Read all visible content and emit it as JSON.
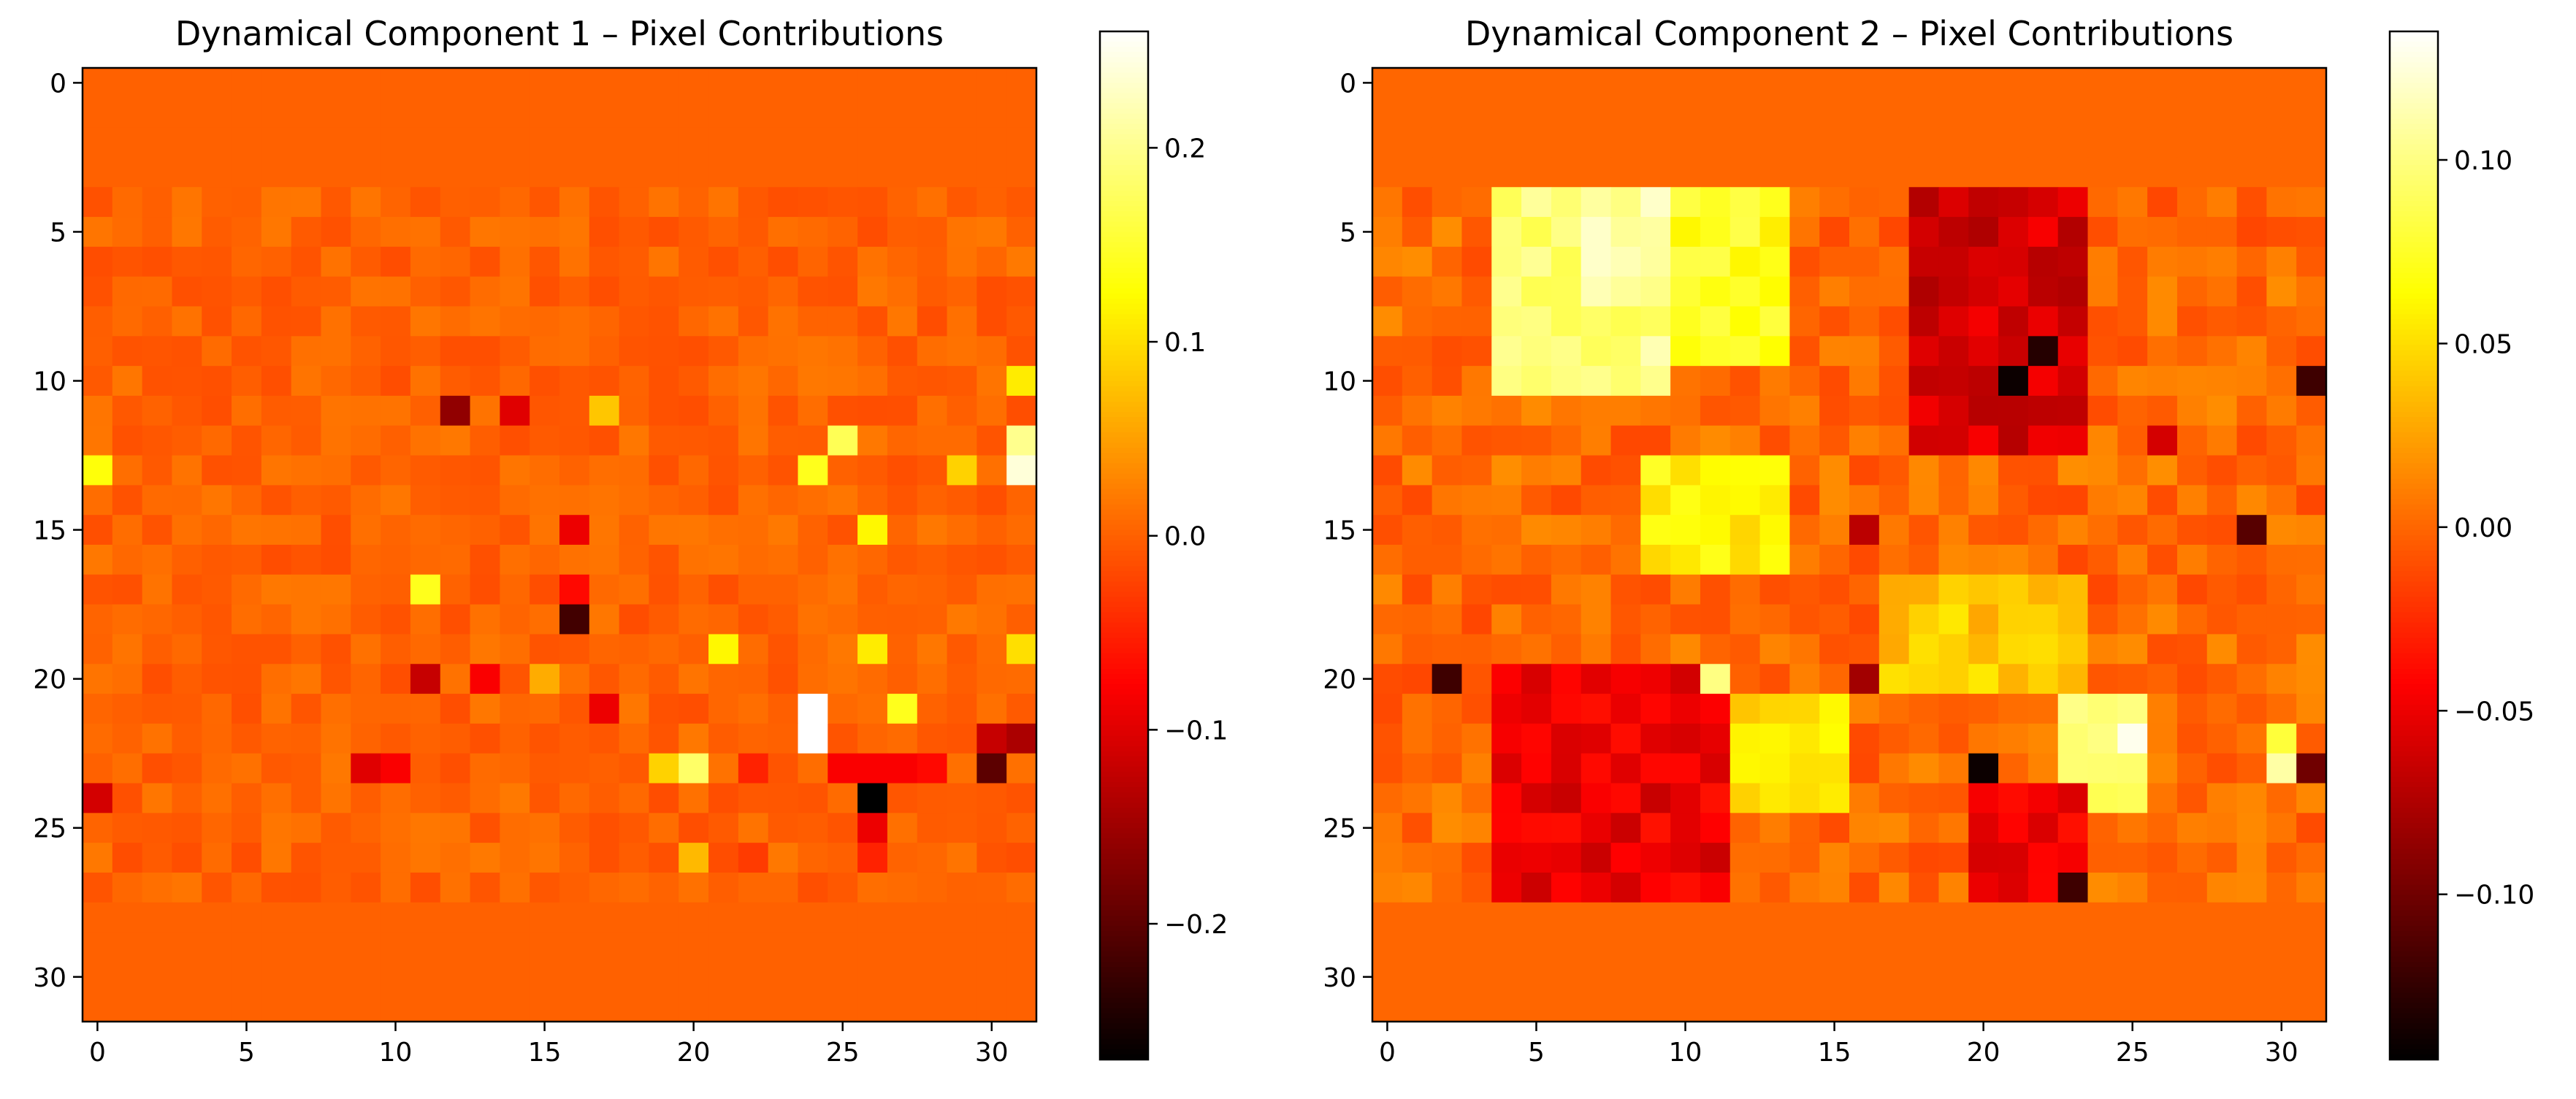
{
  "figure": {
    "background": "#ffffff",
    "colormap": "hot"
  },
  "chart_data": [
    {
      "type": "heatmap",
      "title": "Dynamical Component 1 – Pixel Contributions",
      "xlabel": "",
      "ylabel": "",
      "grid_size": [
        32,
        32
      ],
      "x_ticks": [
        0,
        5,
        10,
        15,
        20,
        25,
        30
      ],
      "y_ticks": [
        0,
        5,
        10,
        15,
        20,
        25,
        30
      ],
      "colorbar": {
        "vmin": -0.27,
        "vmax": 0.26,
        "ticks": [
          -0.2,
          -0.1,
          0.0,
          0.1,
          0.2
        ],
        "tick_labels": [
          "−0.2",
          "−0.1",
          "0.0",
          "0.1",
          "0.2"
        ]
      },
      "background_value": 0.0,
      "active_rows": [
        4,
        27
      ],
      "notable_cells": [
        {
          "row": 13,
          "col": 0,
          "value": 0.13
        },
        {
          "row": 24,
          "col": 0,
          "value": -0.11
        },
        {
          "row": 11,
          "col": 12,
          "value": -0.16
        },
        {
          "row": 11,
          "col": 14,
          "value": -0.1
        },
        {
          "row": 11,
          "col": 17,
          "value": 0.08
        },
        {
          "row": 12,
          "col": 25,
          "value": 0.17
        },
        {
          "row": 13,
          "col": 24,
          "value": 0.14
        },
        {
          "row": 12,
          "col": 31,
          "value": 0.2
        },
        {
          "row": 13,
          "col": 31,
          "value": 0.24
        },
        {
          "row": 10,
          "col": 31,
          "value": 0.11
        },
        {
          "row": 13,
          "col": 29,
          "value": 0.09
        },
        {
          "row": 15,
          "col": 26,
          "value": 0.12
        },
        {
          "row": 15,
          "col": 16,
          "value": -0.09
        },
        {
          "row": 17,
          "col": 11,
          "value": 0.14
        },
        {
          "row": 17,
          "col": 16,
          "value": -0.07
        },
        {
          "row": 18,
          "col": 16,
          "value": -0.22
        },
        {
          "row": 19,
          "col": 21,
          "value": 0.12
        },
        {
          "row": 19,
          "col": 26,
          "value": 0.11
        },
        {
          "row": 19,
          "col": 31,
          "value": 0.1
        },
        {
          "row": 20,
          "col": 11,
          "value": -0.12
        },
        {
          "row": 20,
          "col": 13,
          "value": -0.08
        },
        {
          "row": 20,
          "col": 15,
          "value": 0.06
        },
        {
          "row": 21,
          "col": 17,
          "value": -0.09
        },
        {
          "row": 21,
          "col": 27,
          "value": 0.14
        },
        {
          "row": 21,
          "col": 24,
          "value": 0.26
        },
        {
          "row": 22,
          "col": 24,
          "value": 0.26
        },
        {
          "row": 22,
          "col": 30,
          "value": -0.12
        },
        {
          "row": 22,
          "col": 31,
          "value": -0.14
        },
        {
          "row": 23,
          "col": 9,
          "value": -0.1
        },
        {
          "row": 23,
          "col": 10,
          "value": -0.08
        },
        {
          "row": 23,
          "col": 19,
          "value": 0.09
        },
        {
          "row": 23,
          "col": 20,
          "value": 0.18
        },
        {
          "row": 23,
          "col": 22,
          "value": -0.05
        },
        {
          "row": 23,
          "col": 25,
          "value": -0.08
        },
        {
          "row": 23,
          "col": 26,
          "value": -0.08
        },
        {
          "row": 23,
          "col": 27,
          "value": -0.08
        },
        {
          "row": 23,
          "col": 28,
          "value": -0.07
        },
        {
          "row": 23,
          "col": 30,
          "value": -0.2
        },
        {
          "row": 24,
          "col": 26,
          "value": -0.27
        },
        {
          "row": 25,
          "col": 26,
          "value": -0.09
        },
        {
          "row": 26,
          "col": 20,
          "value": 0.07
        },
        {
          "row": 26,
          "col": 22,
          "value": -0.03
        },
        {
          "row": 26,
          "col": 26,
          "value": -0.05
        }
      ]
    },
    {
      "type": "heatmap",
      "title": "Dynamical Component 2 – Pixel Contributions",
      "xlabel": "",
      "ylabel": "",
      "grid_size": [
        32,
        32
      ],
      "x_ticks": [
        0,
        5,
        10,
        15,
        20,
        25,
        30
      ],
      "y_ticks": [
        0,
        5,
        10,
        15,
        20,
        25,
        30
      ],
      "colorbar": {
        "vmin": -0.145,
        "vmax": 0.135,
        "ticks": [
          -0.1,
          -0.05,
          0.0,
          0.05,
          0.1
        ],
        "tick_labels": [
          "−0.10",
          "−0.05",
          "0.00",
          "0.05",
          "0.10"
        ]
      },
      "background_value": 0.0,
      "active_rows": [
        4,
        27
      ],
      "notable_cells": [
        {
          "row": 5,
          "col": 7,
          "value": 0.12
        },
        {
          "row": 6,
          "col": 7,
          "value": 0.12
        },
        {
          "row": 4,
          "col": 9,
          "value": 0.12
        },
        {
          "row": 9,
          "col": 22,
          "value": -0.13
        },
        {
          "row": 10,
          "col": 21,
          "value": -0.14
        },
        {
          "row": 10,
          "col": 31,
          "value": -0.12
        },
        {
          "row": 12,
          "col": 26,
          "value": -0.06
        },
        {
          "row": 15,
          "col": 16,
          "value": -0.07
        },
        {
          "row": 15,
          "col": 29,
          "value": -0.11
        },
        {
          "row": 20,
          "col": 2,
          "value": -0.12
        },
        {
          "row": 20,
          "col": 11,
          "value": 0.1
        },
        {
          "row": 20,
          "col": 16,
          "value": -0.08
        },
        {
          "row": 22,
          "col": 25,
          "value": 0.13
        },
        {
          "row": 22,
          "col": 30,
          "value": 0.08
        },
        {
          "row": 23,
          "col": 20,
          "value": -0.14
        },
        {
          "row": 23,
          "col": 30,
          "value": 0.11
        },
        {
          "row": 23,
          "col": 31,
          "value": -0.1
        },
        {
          "row": 27,
          "col": 23,
          "value": -0.12
        }
      ],
      "regions": [
        {
          "rows": [
            4,
            10
          ],
          "cols": [
            4,
            9
          ],
          "value": 0.1
        },
        {
          "rows": [
            4,
            9
          ],
          "cols": [
            10,
            13
          ],
          "value": 0.07
        },
        {
          "rows": [
            4,
            12
          ],
          "cols": [
            18,
            23
          ],
          "value": -0.06
        },
        {
          "rows": [
            13,
            16
          ],
          "cols": [
            9,
            13
          ],
          "value": 0.06
        },
        {
          "rows": [
            17,
            20
          ],
          "cols": [
            17,
            23
          ],
          "value": 0.04
        },
        {
          "rows": [
            21,
            24
          ],
          "cols": [
            12,
            15
          ],
          "value": 0.05
        },
        {
          "rows": [
            21,
            24
          ],
          "cols": [
            23,
            25
          ],
          "value": 0.09
        },
        {
          "rows": [
            20,
            27
          ],
          "cols": [
            4,
            11
          ],
          "value": -0.05
        },
        {
          "rows": [
            24,
            27
          ],
          "cols": [
            20,
            23
          ],
          "value": -0.05
        }
      ]
    }
  ]
}
